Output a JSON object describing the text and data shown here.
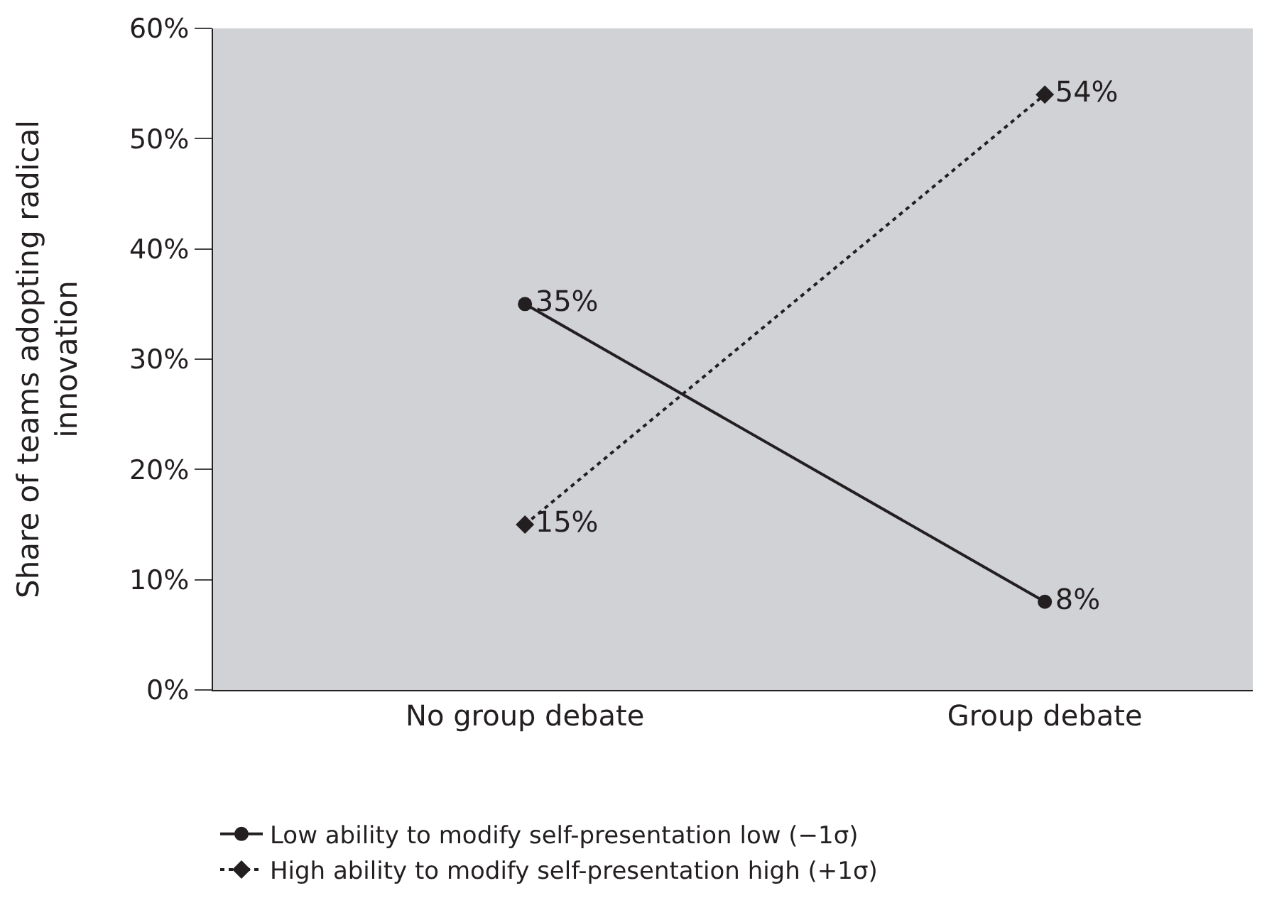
{
  "chart_data": {
    "type": "line",
    "ylabel": "Share of teams adopting radical\ninnovation",
    "categories": [
      "No group debate",
      "Group debate"
    ],
    "series": [
      {
        "name": "Low ability to modify self-presentation low (−1σ)",
        "color": "#231f20",
        "values": [
          35,
          8
        ],
        "value_labels": [
          "35%",
          "8%"
        ],
        "marker": "circle",
        "line_style": "solid"
      },
      {
        "name": "High ability to modify self-presentation high (+1σ)",
        "color": "#231f20",
        "values": [
          15,
          54
        ],
        "value_labels": [
          "15%",
          "54%"
        ],
        "marker": "diamond",
        "line_style": "dotted"
      }
    ],
    "ylim": [
      0,
      60
    ],
    "yticks": [
      {
        "value": 0,
        "label": "0%"
      },
      {
        "value": 10,
        "label": "10%"
      },
      {
        "value": 20,
        "label": "20%"
      },
      {
        "value": 30,
        "label": "30%"
      },
      {
        "value": 40,
        "label": "40%"
      },
      {
        "value": 50,
        "label": "50%"
      },
      {
        "value": 60,
        "label": "60%"
      }
    ],
    "grid": false,
    "legend": "bottom"
  }
}
